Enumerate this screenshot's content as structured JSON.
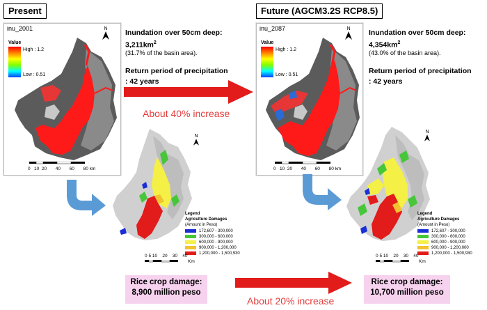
{
  "present": {
    "title": "Present",
    "map_name": "inu_2001",
    "legend_title": "Value",
    "legend_high": "High : 1.2",
    "legend_low": "Low : 0.51",
    "scale_labels": [
      "0",
      "10",
      "20",
      "40",
      "60",
      "80"
    ],
    "scale_unit": "km",
    "inundation_title": "Inundation over 50cm deep:",
    "inundation_value": "3,211km",
    "inundation_sup": "2",
    "inundation_pct": "(31.7% of the basin area).",
    "return_title": "Return period of precipitation",
    "return_value": ": 42 years",
    "damage_line1": "Rice crop damage:",
    "damage_line2": "8,900 million peso",
    "damage_scale": [
      "0",
      "5",
      "10",
      "20",
      "30",
      "40"
    ],
    "damage_scale_unit": "Km"
  },
  "future": {
    "title": "Future (AGCM3.2S RCP8.5)",
    "map_name": "inu_2087",
    "legend_title": "Value",
    "legend_high": "High : 1.2",
    "legend_low": "Low : 0.51",
    "scale_labels": [
      "0",
      "10",
      "20",
      "40",
      "60",
      "80"
    ],
    "scale_unit": "km",
    "inundation_title": "Inundation over 50cm deep:",
    "inundation_value": "4,354km",
    "inundation_sup": "2",
    "inundation_pct": "(43.0% of the basin area).",
    "return_title": "Return period of precipitation",
    "return_value": ": 42 years",
    "damage_line1": "Rice crop damage:",
    "damage_line2": "10,700 million peso",
    "damage_scale": [
      "0",
      "5",
      "10",
      "20",
      "30",
      "40"
    ],
    "damage_scale_unit": "Km"
  },
  "comparisons": {
    "inundation_increase": "About 40% increase",
    "damage_increase": "About 20% increase"
  },
  "damage_legend": {
    "title1": "Legend",
    "title2": "Agriculture Damages",
    "title3": "(Amount in Peso)",
    "items": [
      {
        "label": "172,607 - 300,000",
        "color": "#1a2fd6"
      },
      {
        "label": "300,000 - 600,000",
        "color": "#47c63a"
      },
      {
        "label": "600,000 - 900,000",
        "color": "#f4f045"
      },
      {
        "label": "900,000 - 1,200,000",
        "color": "#f2c230"
      },
      {
        "label": "1,200,000 - 1,500,930",
        "color": "#e21b1b"
      }
    ]
  },
  "north_label": "N",
  "colors": {
    "arrow_red": "#e21b1b",
    "arrow_blue": "#5b9bd5",
    "increase_text": "#e23b3b",
    "pink_box": "#f7d2ef"
  }
}
